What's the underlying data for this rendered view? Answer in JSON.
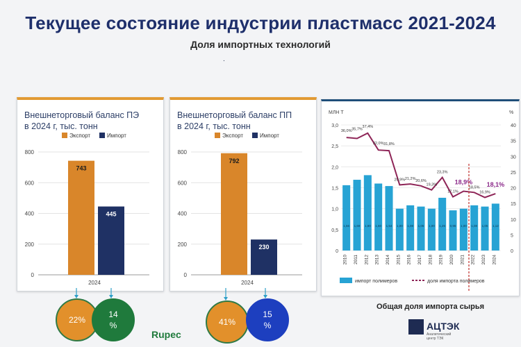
{
  "header": {
    "title": "Текущее состояние  индустрии  пластмасс 2021-2024",
    "subtitle": "Доля импортных технологий",
    "dot": "."
  },
  "pe": {
    "title_line1": "Внешнеторговый баланс ПЭ",
    "title_line2": "в 2024 г, тыс. тонн",
    "legend_export": "Экспорт",
    "legend_import": "Импорт",
    "year": "2024",
    "percent_export": "22%",
    "percent_import_1": "14",
    "percent_import_2": "%"
  },
  "pp": {
    "title_line1": "Внешнеторговый баланс ПП",
    "title_line2": "в 2024 г, тыс. тонн",
    "legend_export": "Экспорт",
    "legend_import": "Импорт",
    "year": "2024",
    "percent_export": "41%",
    "percent_import_1": "15",
    "percent_import_2": "%"
  },
  "imports": {
    "left_unit": "МЛН Т",
    "right_unit": "%",
    "legend_bars": "импорт полимеров",
    "legend_line": "доля импорта полимеров",
    "caption": "Общая доля импорта сырья"
  },
  "footer": {
    "rupec": "Rupec",
    "logo_text": "АЦТЭК",
    "logo_sub": "Аналитический центр ТЭК"
  },
  "colors": {
    "export": "#d9862a",
    "import": "#1f3164",
    "bars": "#27a3d4",
    "line": "#8e2557",
    "highlight": "#8b2a8a"
  },
  "chart_data": [
    {
      "type": "bar",
      "title": "Внешнеторговый баланс ПЭ в 2024 г, тыс. тонн",
      "categories": [
        "2024"
      ],
      "series": [
        {
          "name": "Экспорт",
          "values": [
            743
          ]
        },
        {
          "name": "Импорт",
          "values": [
            445
          ]
        }
      ],
      "ylim": [
        0,
        800
      ],
      "yticks": [
        0,
        200,
        400,
        600,
        800
      ],
      "legend": "top"
    },
    {
      "type": "bar",
      "title": "Внешнеторговый баланс ПП в 2024 г, тыс. тонн",
      "categories": [
        "2024"
      ],
      "series": [
        {
          "name": "Экспорт",
          "values": [
            792
          ]
        },
        {
          "name": "Импорт",
          "values": [
            230
          ]
        }
      ],
      "ylim": [
        0,
        800
      ],
      "yticks": [
        0,
        200,
        400,
        600,
        800
      ],
      "legend": "top"
    },
    {
      "type": "bar",
      "categories": [
        "2010",
        "2011",
        "2012",
        "2013",
        "2014",
        "2015",
        "2016",
        "2017",
        "2018",
        "2019",
        "2020",
        "2021",
        "2022",
        "2023",
        "2024"
      ],
      "series": [
        {
          "name": "импорт полимеров",
          "values": [
            1.56,
            1.69,
            1.8,
            1.6,
            1.54,
            1.0,
            1.08,
            1.05,
            1.0,
            1.26,
            0.96,
            1.0,
            1.08,
            1.05,
            1.12
          ],
          "axis": "left"
        },
        {
          "name": "доля импорта полимеров",
          "type": "line",
          "values": [
            36.0,
            35.7,
            37.4,
            32.0,
            31.8,
            20.9,
            21.2,
            20.6,
            19.3,
            23.3,
            17.1,
            18.9,
            18.5,
            16.9,
            18.1
          ],
          "axis": "right"
        }
      ],
      "point_labels": [
        "36,0%",
        "35,7%",
        "37,4%",
        "32,0%",
        "31,8%",
        "20,9%",
        "21,2%",
        "20,6%",
        "19,3%",
        "23,3%",
        "17,1%",
        "18,9%",
        "18,5%",
        "16,9%",
        "18,1%"
      ],
      "highlight_labels": [
        "18,9%",
        "18,1%"
      ],
      "ylim_left": [
        0,
        3.0
      ],
      "yticks_left": [
        "0",
        "0,5",
        "1,0",
        "1,5",
        "2,0",
        "2,5",
        "3,0"
      ],
      "ylim_right": [
        0,
        40
      ],
      "yticks_right": [
        "0",
        "5",
        "10",
        "15",
        "20",
        "25",
        "30",
        "35",
        "40"
      ],
      "legend": "bottom"
    }
  ]
}
